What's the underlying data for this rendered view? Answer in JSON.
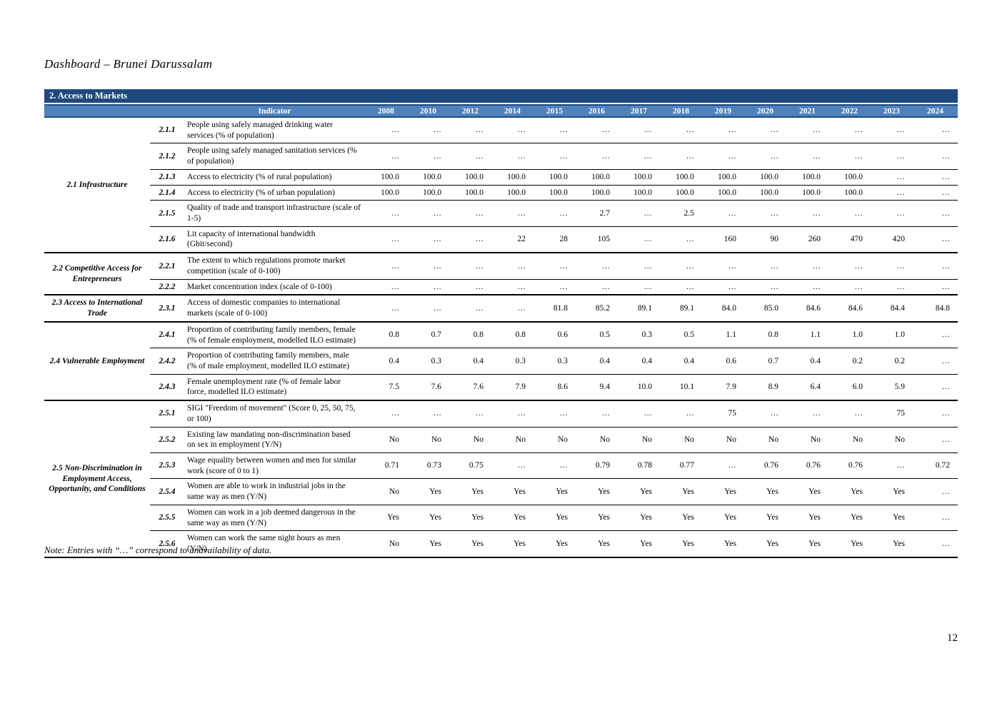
{
  "page": {
    "title": "Dashboard – Brunei Darussalam",
    "note": "Note: Entries with “…” correspond to unavailability of data.",
    "page_number": "12"
  },
  "theme": {
    "banner_bg": "#1F497D",
    "header_bg": "#4F81BD",
    "header_text": "#FFFFFF",
    "border": "#000000"
  },
  "table": {
    "banner": "2. Access to Markets",
    "indicator_header": "Indicator",
    "years": [
      "2008",
      "2010",
      "2012",
      "2014",
      "2015",
      "2016",
      "2017",
      "2018",
      "2019",
      "2020",
      "2021",
      "2022",
      "2023",
      "2024"
    ],
    "missing_marker": "…",
    "sections": [
      {
        "group": "2.1 Infrastructure",
        "rows": [
          {
            "num": "2.1.1",
            "indicator": "People using safely managed drinking water services (% of population)",
            "values": [
              "…",
              "…",
              "…",
              "…",
              "…",
              "…",
              "…",
              "…",
              "…",
              "…",
              "…",
              "…",
              "…",
              "…"
            ]
          },
          {
            "num": "2.1.2",
            "indicator": "People using safely managed sanitation services (% of population)",
            "values": [
              "…",
              "…",
              "…",
              "…",
              "…",
              "…",
              "…",
              "…",
              "…",
              "…",
              "…",
              "…",
              "…",
              "…"
            ]
          },
          {
            "num": "2.1.3",
            "indicator": "Access to electricity (% of rural population)",
            "values": [
              "100.0",
              "100.0",
              "100.0",
              "100.0",
              "100.0",
              "100.0",
              "100.0",
              "100.0",
              "100.0",
              "100.0",
              "100.0",
              "100.0",
              "…",
              "…"
            ]
          },
          {
            "num": "2.1.4",
            "indicator": "Access to electricity (% of urban population)",
            "values": [
              "100.0",
              "100.0",
              "100.0",
              "100.0",
              "100.0",
              "100.0",
              "100.0",
              "100.0",
              "100.0",
              "100.0",
              "100.0",
              "100.0",
              "…",
              "…"
            ]
          },
          {
            "num": "2.1.5",
            "indicator": "Quality of trade and transport infrastructure (scale of 1-5)",
            "values": [
              "…",
              "…",
              "…",
              "…",
              "…",
              "2.7",
              "…",
              "2.5",
              "…",
              "…",
              "…",
              "…",
              "…",
              "…"
            ]
          },
          {
            "num": "2.1.6",
            "indicator": "Lit capacity of international bandwidth (Gbit/second)",
            "values": [
              "…",
              "…",
              "…",
              "22",
              "28",
              "105",
              "…",
              "…",
              "160",
              "90",
              "260",
              "470",
              "420",
              "…"
            ]
          }
        ]
      },
      {
        "group": "2.2 Competitive Access for Entrepreneurs",
        "rows": [
          {
            "num": "2.2.1",
            "indicator": "The extent to which regulations promote market competition (scale of 0-100)",
            "values": [
              "…",
              "…",
              "…",
              "…",
              "…",
              "…",
              "…",
              "…",
              "…",
              "…",
              "…",
              "…",
              "…",
              "…"
            ]
          },
          {
            "num": "2.2.2",
            "indicator": "Market concentration index (scale of 0-100)",
            "values": [
              "…",
              "…",
              "…",
              "…",
              "…",
              "…",
              "…",
              "…",
              "…",
              "…",
              "…",
              "…",
              "…",
              "…"
            ]
          }
        ]
      },
      {
        "group": "2.3 Access to International Trade",
        "rows": [
          {
            "num": "2.3.1",
            "indicator": "Access of domestic companies to international markets (scale of 0-100)",
            "values": [
              "…",
              "…",
              "…",
              "…",
              "81.8",
              "85.2",
              "89.1",
              "89.1",
              "84.0",
              "85.0",
              "84.6",
              "84.6",
              "84.4",
              "84.8"
            ]
          }
        ]
      },
      {
        "group": "2.4 Vulnerable Employment",
        "rows": [
          {
            "num": "2.4.1",
            "indicator": "Proportion of contributing family members, female (% of female employment, modelled ILO estimate)",
            "values": [
              "0.8",
              "0.7",
              "0.8",
              "0.8",
              "0.6",
              "0.5",
              "0.3",
              "0.5",
              "1.1",
              "0.8",
              "1.1",
              "1.0",
              "1.0",
              "…"
            ]
          },
          {
            "num": "2.4.2",
            "indicator": "Proportion of contributing family members, male (% of male employment, modelled ILO estimate)",
            "values": [
              "0.4",
              "0.3",
              "0.4",
              "0.3",
              "0.3",
              "0.4",
              "0.4",
              "0.4",
              "0.6",
              "0.7",
              "0.4",
              "0.2",
              "0.2",
              "…"
            ]
          },
          {
            "num": "2.4.3",
            "indicator": "Female unemployment rate (% of female labor force, modelled ILO estimate)",
            "values": [
              "7.5",
              "7.6",
              "7.6",
              "7.9",
              "8.6",
              "9.4",
              "10.0",
              "10.1",
              "7.9",
              "8.9",
              "6.4",
              "6.0",
              "5.9",
              "…"
            ]
          }
        ]
      },
      {
        "group": "2.5 Non-Discrimination in Employment Access, Opportunity, and Conditions",
        "rows": [
          {
            "num": "2.5.1",
            "indicator": "SIGI \"Freedom of movement\" (Score 0, 25, 50, 75, or 100)",
            "values": [
              "…",
              "…",
              "…",
              "…",
              "…",
              "…",
              "…",
              "…",
              "75",
              "…",
              "…",
              "…",
              "75",
              "…"
            ]
          },
          {
            "num": "2.5.2",
            "indicator": "Existing law mandating non-discrimination based on sex in employment (Y/N)",
            "values": [
              "No",
              "No",
              "No",
              "No",
              "No",
              "No",
              "No",
              "No",
              "No",
              "No",
              "No",
              "No",
              "No",
              "…"
            ]
          },
          {
            "num": "2.5.3",
            "indicator": "Wage equality between women and men for similar work (score of 0 to 1)",
            "values": [
              "0.71",
              "0.73",
              "0.75",
              "…",
              "…",
              "0.79",
              "0.78",
              "0.77",
              "…",
              "0.76",
              "0.76",
              "0.76",
              "…",
              "0.72"
            ]
          },
          {
            "num": "2.5.4",
            "indicator": "Women are able to work in industrial jobs in the same way as men (Y/N)",
            "values": [
              "No",
              "Yes",
              "Yes",
              "Yes",
              "Yes",
              "Yes",
              "Yes",
              "Yes",
              "Yes",
              "Yes",
              "Yes",
              "Yes",
              "Yes",
              "…"
            ]
          },
          {
            "num": "2.5.5",
            "indicator": "Women can work in a job deemed dangerous in the same way as men (Y/N)",
            "values": [
              "Yes",
              "Yes",
              "Yes",
              "Yes",
              "Yes",
              "Yes",
              "Yes",
              "Yes",
              "Yes",
              "Yes",
              "Yes",
              "Yes",
              "Yes",
              "…"
            ]
          },
          {
            "num": "2.5.6",
            "indicator": "Women can work the same night hours as men (Y/N)",
            "values": [
              "No",
              "Yes",
              "Yes",
              "Yes",
              "Yes",
              "Yes",
              "Yes",
              "Yes",
              "Yes",
              "Yes",
              "Yes",
              "Yes",
              "Yes",
              "…"
            ]
          }
        ]
      }
    ]
  }
}
